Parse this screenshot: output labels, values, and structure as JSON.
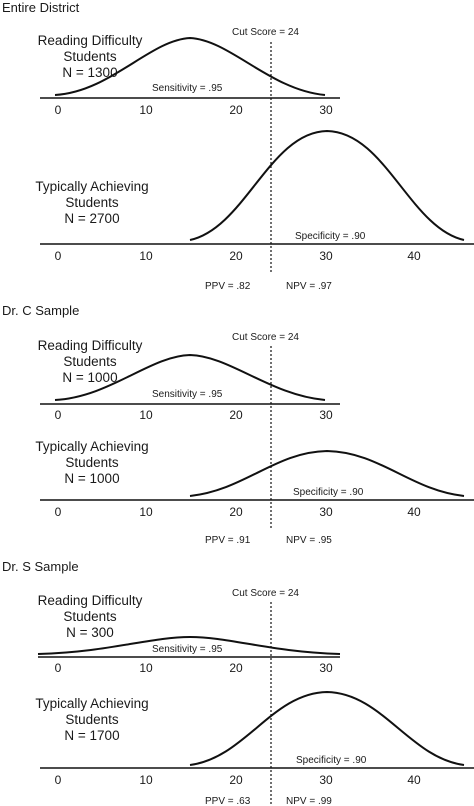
{
  "panels": [
    {
      "heading": "Entire District",
      "cut_label": "Cut Score = 24",
      "groups": [
        {
          "lines": [
            "Reading Difficulty",
            "Students",
            "N = 1300"
          ],
          "stat": "Sensitivity = .95",
          "ticks": [
            "0",
            "10",
            "20",
            "30"
          ]
        },
        {
          "lines": [
            "Typically Achieving",
            "Students",
            "N = 2700"
          ],
          "stat": "Specificity = .90",
          "ticks": [
            "0",
            "10",
            "20",
            "30",
            "40"
          ]
        }
      ],
      "ppv": "PPV = .82",
      "npv": "NPV = .97"
    },
    {
      "heading": "Dr. C Sample",
      "cut_label": "Cut Score = 24",
      "groups": [
        {
          "lines": [
            "Reading Difficulty",
            "Students",
            "N = 1000"
          ],
          "stat": "Sensitivity = .95",
          "ticks": [
            "0",
            "10",
            "20",
            "30"
          ]
        },
        {
          "lines": [
            "Typically Achieving",
            "Students",
            "N = 1000"
          ],
          "stat": "Specificity = .90",
          "ticks": [
            "0",
            "10",
            "20",
            "30",
            "40"
          ]
        }
      ],
      "ppv": "PPV = .91",
      "npv": "NPV = .95"
    },
    {
      "heading": "Dr. S Sample",
      "cut_label": "Cut Score = 24",
      "groups": [
        {
          "lines": [
            "Reading Difficulty",
            "Students",
            "N = 300"
          ],
          "stat": "Sensitivity = .95",
          "ticks": [
            "0",
            "10",
            "20",
            "30"
          ]
        },
        {
          "lines": [
            "Typically Achieving",
            "Students",
            "N = 1700"
          ],
          "stat": "Specificity = .90",
          "ticks": [
            "0",
            "10",
            "20",
            "30",
            "40"
          ]
        }
      ],
      "ppv": "PPV = .63",
      "npv": "NPV = .99"
    }
  ]
}
